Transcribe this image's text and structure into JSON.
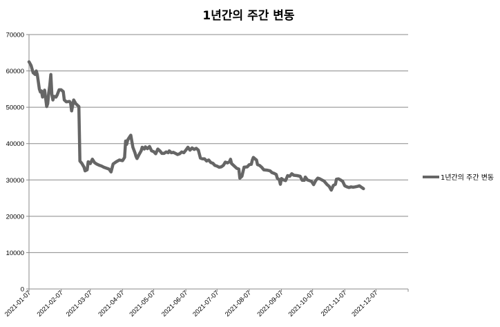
{
  "chart_data": {
    "type": "line",
    "title": "1년간의 주간 변동",
    "xlabel": "",
    "ylabel": "",
    "ylim": [
      0,
      70000
    ],
    "y_ticks": [
      0,
      10000,
      20000,
      30000,
      40000,
      50000,
      60000,
      70000
    ],
    "y_tick_labels": [
      "0",
      "10000",
      "20000",
      "30000",
      "40000",
      "50000",
      "60000",
      "70000"
    ],
    "x_range": [
      "2021-01-07",
      "2022-01-07"
    ],
    "x_tick_labels": [
      "2021-01-07",
      "2021-02-07",
      "2021-03-07",
      "2021-04-07",
      "2021-05-07",
      "2021-06-07",
      "2021-07-07",
      "2021-08-07",
      "2021-09-07",
      "2021-10-07",
      "2021-11-07",
      "2021-12-07"
    ],
    "grid": "horizontal",
    "legend_position": "right",
    "series": [
      {
        "name": "1년간의 주간 변동",
        "color": "#666666",
        "points": [
          [
            "2021-01-07",
            62500
          ],
          [
            "2021-01-09",
            61500
          ],
          [
            "2021-01-11",
            59500
          ],
          [
            "2021-01-13",
            59000
          ],
          [
            "2021-01-14",
            60000
          ],
          [
            "2021-01-15",
            59000
          ],
          [
            "2021-01-17",
            55000
          ],
          [
            "2021-01-18",
            54200
          ],
          [
            "2021-01-19",
            54500
          ],
          [
            "2021-01-20",
            52800
          ],
          [
            "2021-01-21",
            53300
          ],
          [
            "2021-01-22",
            54700
          ],
          [
            "2021-01-24",
            50200
          ],
          [
            "2021-01-25",
            51000
          ],
          [
            "2021-01-26",
            54000
          ],
          [
            "2021-01-27",
            56000
          ],
          [
            "2021-01-28",
            59000
          ],
          [
            "2021-01-29",
            53500
          ],
          [
            "2021-01-30",
            52000
          ],
          [
            "2021-01-31",
            53000
          ],
          [
            "2021-02-02",
            52800
          ],
          [
            "2021-02-03",
            53300
          ],
          [
            "2021-02-05",
            54800
          ],
          [
            "2021-02-07",
            54800
          ],
          [
            "2021-02-09",
            54300
          ],
          [
            "2021-02-10",
            52000
          ],
          [
            "2021-02-12",
            51500
          ],
          [
            "2021-02-15",
            51600
          ],
          [
            "2021-02-16",
            51200
          ],
          [
            "2021-02-17",
            49000
          ],
          [
            "2021-02-19",
            52000
          ],
          [
            "2021-02-21",
            51000
          ],
          [
            "2021-02-24",
            50200
          ],
          [
            "2021-02-25",
            35200
          ],
          [
            "2021-02-27",
            34500
          ],
          [
            "2021-03-01",
            33500
          ],
          [
            "2021-03-02",
            32500
          ],
          [
            "2021-03-04",
            32800
          ],
          [
            "2021-03-05",
            35000
          ],
          [
            "2021-03-06",
            34800
          ],
          [
            "2021-03-07",
            34500
          ],
          [
            "2021-03-09",
            35700
          ],
          [
            "2021-03-11",
            34800
          ],
          [
            "2021-03-13",
            34400
          ],
          [
            "2021-03-16",
            34000
          ],
          [
            "2021-03-18",
            33800
          ],
          [
            "2021-03-20",
            33500
          ],
          [
            "2021-03-23",
            33200
          ],
          [
            "2021-03-25",
            33000
          ],
          [
            "2021-03-27",
            32200
          ],
          [
            "2021-03-29",
            34400
          ],
          [
            "2021-04-01",
            35000
          ],
          [
            "2021-04-04",
            35500
          ],
          [
            "2021-04-07",
            35300
          ],
          [
            "2021-04-09",
            36200
          ],
          [
            "2021-04-10",
            40700
          ],
          [
            "2021-04-11",
            39800
          ],
          [
            "2021-04-12",
            41000
          ],
          [
            "2021-04-14",
            41900
          ],
          [
            "2021-04-15",
            42300
          ],
          [
            "2021-04-17",
            39000
          ],
          [
            "2021-04-19",
            37500
          ],
          [
            "2021-04-20",
            36500
          ],
          [
            "2021-04-21",
            35900
          ],
          [
            "2021-04-23",
            37000
          ],
          [
            "2021-04-25",
            38000
          ],
          [
            "2021-04-26",
            39000
          ],
          [
            "2021-04-28",
            38500
          ],
          [
            "2021-04-29",
            39100
          ],
          [
            "2021-05-01",
            38600
          ],
          [
            "2021-05-03",
            39200
          ],
          [
            "2021-05-05",
            38000
          ],
          [
            "2021-05-07",
            37800
          ],
          [
            "2021-05-09",
            37200
          ],
          [
            "2021-05-11",
            38500
          ],
          [
            "2021-05-13",
            38000
          ],
          [
            "2021-05-15",
            37300
          ],
          [
            "2021-05-17",
            37300
          ],
          [
            "2021-05-19",
            37700
          ],
          [
            "2021-05-21",
            37500
          ],
          [
            "2021-05-22",
            38000
          ],
          [
            "2021-05-24",
            37500
          ],
          [
            "2021-05-26",
            37600
          ],
          [
            "2021-05-28",
            37300
          ],
          [
            "2021-05-30",
            37000
          ],
          [
            "2021-06-01",
            37200
          ],
          [
            "2021-06-03",
            37700
          ],
          [
            "2021-06-05",
            37500
          ],
          [
            "2021-06-07",
            38200
          ],
          [
            "2021-06-09",
            39000
          ],
          [
            "2021-06-11",
            38200
          ],
          [
            "2021-06-13",
            38800
          ],
          [
            "2021-06-15",
            38400
          ],
          [
            "2021-06-17",
            38700
          ],
          [
            "2021-06-19",
            38200
          ],
          [
            "2021-06-21",
            36000
          ],
          [
            "2021-06-23",
            35800
          ],
          [
            "2021-06-25",
            35800
          ],
          [
            "2021-06-27",
            35200
          ],
          [
            "2021-06-29",
            35500
          ],
          [
            "2021-07-01",
            34800
          ],
          [
            "2021-07-03",
            34600
          ],
          [
            "2021-07-05",
            34000
          ],
          [
            "2021-07-07",
            33800
          ],
          [
            "2021-07-09",
            33500
          ],
          [
            "2021-07-11",
            33600
          ],
          [
            "2021-07-13",
            34000
          ],
          [
            "2021-07-15",
            34900
          ],
          [
            "2021-07-17",
            34700
          ],
          [
            "2021-07-19",
            35000
          ],
          [
            "2021-07-20",
            35700
          ],
          [
            "2021-07-21",
            34500
          ],
          [
            "2021-07-23",
            34000
          ],
          [
            "2021-07-26",
            33200
          ],
          [
            "2021-07-28",
            33000
          ],
          [
            "2021-07-29",
            30500
          ],
          [
            "2021-07-31",
            31000
          ],
          [
            "2021-08-02",
            33500
          ],
          [
            "2021-08-05",
            33600
          ],
          [
            "2021-08-07",
            34200
          ],
          [
            "2021-08-09",
            34300
          ],
          [
            "2021-08-10",
            35500
          ],
          [
            "2021-08-11",
            36200
          ],
          [
            "2021-08-13",
            35700
          ],
          [
            "2021-08-14",
            35500
          ],
          [
            "2021-08-15",
            34200
          ],
          [
            "2021-08-17",
            34000
          ],
          [
            "2021-08-19",
            33500
          ],
          [
            "2021-08-21",
            32800
          ],
          [
            "2021-08-24",
            32700
          ],
          [
            "2021-08-27",
            32500
          ],
          [
            "2021-08-29",
            32000
          ],
          [
            "2021-08-31",
            31800
          ],
          [
            "2021-09-02",
            31500
          ],
          [
            "2021-09-03",
            30500
          ],
          [
            "2021-09-05",
            30000
          ],
          [
            "2021-09-06",
            28800
          ],
          [
            "2021-09-07",
            30400
          ],
          [
            "2021-09-09",
            30000
          ],
          [
            "2021-09-11",
            29800
          ],
          [
            "2021-09-13",
            31200
          ],
          [
            "2021-09-15",
            31000
          ],
          [
            "2021-09-17",
            31700
          ],
          [
            "2021-09-19",
            31300
          ],
          [
            "2021-09-22",
            31200
          ],
          [
            "2021-09-25",
            31000
          ],
          [
            "2021-09-27",
            29900
          ],
          [
            "2021-09-29",
            29900
          ],
          [
            "2021-09-30",
            30800
          ],
          [
            "2021-10-02",
            30000
          ],
          [
            "2021-10-04",
            29800
          ],
          [
            "2021-10-06",
            29600
          ],
          [
            "2021-10-08",
            28700
          ],
          [
            "2021-10-10",
            29800
          ],
          [
            "2021-10-12",
            30500
          ],
          [
            "2021-10-14",
            30300
          ],
          [
            "2021-10-16",
            30000
          ],
          [
            "2021-10-18",
            29700
          ],
          [
            "2021-10-21",
            28700
          ],
          [
            "2021-10-23",
            28200
          ],
          [
            "2021-10-25",
            27200
          ],
          [
            "2021-10-27",
            28500
          ],
          [
            "2021-10-29",
            28800
          ],
          [
            "2021-10-30",
            30200
          ],
          [
            "2021-11-01",
            30300
          ],
          [
            "2021-11-03",
            30000
          ],
          [
            "2021-11-05",
            29600
          ],
          [
            "2021-11-07",
            28400
          ],
          [
            "2021-11-09",
            28100
          ],
          [
            "2021-11-11",
            27900
          ],
          [
            "2021-11-13",
            28100
          ],
          [
            "2021-11-15",
            28000
          ],
          [
            "2021-11-17",
            28100
          ],
          [
            "2021-11-19",
            28200
          ],
          [
            "2021-11-21",
            28400
          ],
          [
            "2021-11-23",
            28000
          ],
          [
            "2021-11-25",
            27600
          ]
        ]
      }
    ]
  },
  "colors": {
    "line": "#666666",
    "grid": "#888888",
    "axis": "#888888",
    "background": "#ffffff"
  }
}
